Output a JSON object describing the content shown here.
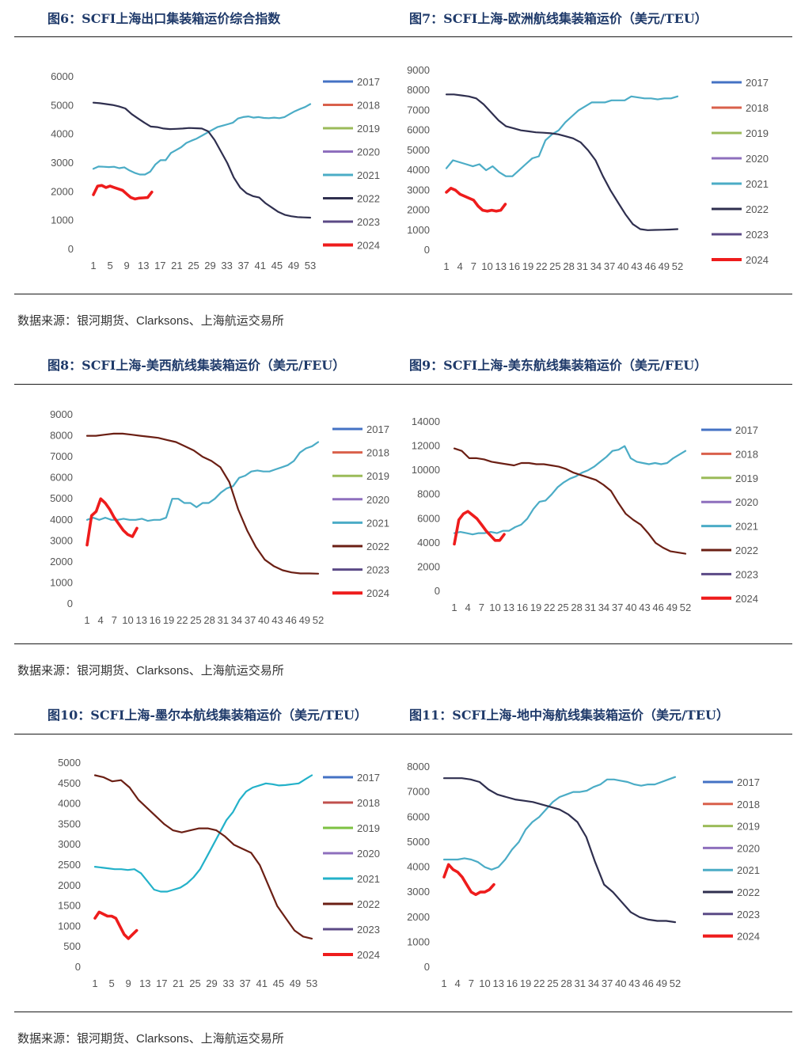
{
  "page": {
    "titles": [
      "图6：SCFI上海出口集装箱运价综合指数",
      "图7：SCFI上海-欧洲航线集装箱运价（美元/TEU）",
      "图8：SCFI上海-美西航线集装箱运价（美元/FEU）",
      "图9：SCFI上海-美东航线集装箱运价（美元/FEU）",
      "图10：SCFI上海-墨尔本航线集装箱运价（美元/TEU）",
      "图11：SCFI上海-地中海航线集装箱运价（美元/TEU）"
    ],
    "sources": [
      "数据来源：银河期货、Clarksons、上海航运交易所",
      "数据来源：银河期货、Clarksons、上海航运交易所",
      "数据来源：银河期货、Clarksons、上海航运交易所"
    ]
  },
  "chart_data": [
    {
      "type": "line",
      "title": "图6：SCFI上海出口集装箱运价综合指数",
      "x_ticks": [
        "1",
        "5",
        "9",
        "13",
        "17",
        "21",
        "25",
        "29",
        "33",
        "37",
        "41",
        "45",
        "49",
        "53"
      ],
      "ylim": [
        0,
        6000
      ],
      "y_ticks": [
        "0",
        "1000",
        "2000",
        "3000",
        "4000",
        "5000",
        "6000"
      ],
      "legend": [
        "2017",
        "2018",
        "2019",
        "2020",
        "2021",
        "2022",
        "2023",
        "2024"
      ],
      "colors": {
        "2017": "#4472c4",
        "2018": "#d9604b",
        "2019": "#9bbb59",
        "2020": "#8e6fbd",
        "2021": "#4bacc6",
        "2022": "#2f2f4f",
        "2023": "#5b4a86",
        "2024": "#ee1c1c"
      },
      "series": [
        {
          "name": "2021",
          "values": [
            2800,
            2880,
            2870,
            2860,
            2870,
            2820,
            2850,
            2740,
            2660,
            2600,
            2600,
            2700,
            2950,
            3100,
            3100,
            3350,
            3450,
            3550,
            3700,
            3780,
            3850,
            3950,
            4050,
            4150,
            4250,
            4300,
            4350,
            4400,
            4550,
            4600,
            4620,
            4580,
            4600,
            4570,
            4560,
            4580,
            4560,
            4600,
            4700,
            4800,
            4880,
            4950,
            5050
          ]
        },
        {
          "name": "2022",
          "values": [
            5100,
            5080,
            5050,
            5020,
            4970,
            4900,
            4700,
            4550,
            4400,
            4270,
            4250,
            4200,
            4180,
            4190,
            4200,
            4220,
            4210,
            4200,
            4100,
            3800,
            3400,
            3000,
            2500,
            2150,
            1950,
            1850,
            1800,
            1600,
            1450,
            1300,
            1200,
            1150,
            1120,
            1110,
            1100
          ]
        },
        {
          "name": "2024",
          "values": [
            1900,
            2200,
            2220,
            2150,
            2200,
            2150,
            2100,
            2050,
            1920,
            1800,
            1750,
            1780,
            1790,
            1800,
            1990
          ]
        }
      ]
    },
    {
      "type": "line",
      "title": "图7：SCFI上海-欧洲航线集装箱运价（美元/TEU）",
      "x_ticks": [
        "1",
        "4",
        "7",
        "10",
        "13",
        "16",
        "19",
        "22",
        "25",
        "28",
        "31",
        "34",
        "37",
        "40",
        "43",
        "46",
        "49",
        "52"
      ],
      "ylim": [
        0,
        9000
      ],
      "y_ticks": [
        "0",
        "1000",
        "2000",
        "3000",
        "4000",
        "5000",
        "6000",
        "7000",
        "8000",
        "9000"
      ],
      "legend": [
        "2017",
        "2018",
        "2019",
        "2020",
        "2021",
        "2022",
        "2023",
        "2024"
      ],
      "colors": {
        "2017": "#4472c4",
        "2018": "#d9604b",
        "2019": "#9bbb59",
        "2020": "#8e6fbd",
        "2021": "#4bacc6",
        "2022": "#2f2f4f",
        "2023": "#5b4a86",
        "2024": "#ee1c1c"
      },
      "series": [
        {
          "name": "2021",
          "values": [
            4100,
            4500,
            4400,
            4300,
            4200,
            4300,
            4000,
            4200,
            3900,
            3700,
            3700,
            4000,
            4300,
            4600,
            4700,
            5500,
            5800,
            6000,
            6400,
            6700,
            7000,
            7200,
            7400,
            7400,
            7400,
            7500,
            7500,
            7500,
            7700,
            7650,
            7600,
            7600,
            7550,
            7600,
            7600,
            7700
          ]
        },
        {
          "name": "2022",
          "values": [
            7800,
            7800,
            7750,
            7700,
            7600,
            7300,
            6900,
            6500,
            6200,
            6100,
            6000,
            5950,
            5900,
            5880,
            5850,
            5800,
            5700,
            5600,
            5400,
            5000,
            4500,
            3700,
            3000,
            2400,
            1800,
            1300,
            1050,
            1000,
            1010,
            1020,
            1030,
            1050
          ]
        },
        {
          "name": "2024",
          "values": [
            2900,
            3100,
            3000,
            2800,
            2700,
            2600,
            2500,
            2200,
            2000,
            1950,
            2000,
            1950,
            2000,
            2300
          ]
        }
      ]
    },
    {
      "type": "line",
      "title": "图8：SCFI上海-美西航线集装箱运价（美元/FEU）",
      "x_ticks": [
        "1",
        "4",
        "7",
        "10",
        "13",
        "16",
        "19",
        "22",
        "25",
        "28",
        "31",
        "34",
        "37",
        "40",
        "43",
        "46",
        "49",
        "52"
      ],
      "ylim": [
        0,
        9000
      ],
      "y_ticks": [
        "0",
        "1000",
        "2000",
        "3000",
        "4000",
        "5000",
        "6000",
        "7000",
        "8000",
        "9000"
      ],
      "legend": [
        "2017",
        "2018",
        "2019",
        "2020",
        "2021",
        "2022",
        "2023",
        "2024"
      ],
      "colors": {
        "2017": "#4472c4",
        "2018": "#d9604b",
        "2019": "#9bbb59",
        "2020": "#8e6fbd",
        "2021": "#4bacc6",
        "2022": "#6b1f14",
        "2023": "#5b4a86",
        "2024": "#ee1c1c"
      },
      "series": [
        {
          "name": "2021",
          "values": [
            4000,
            4100,
            4000,
            4100,
            4000,
            4000,
            4050,
            4000,
            4000,
            4050,
            3950,
            4000,
            4000,
            4100,
            5000,
            5000,
            4800,
            4800,
            4600,
            4800,
            4800,
            5000,
            5300,
            5500,
            5600,
            6000,
            6100,
            6300,
            6350,
            6300,
            6300,
            6400,
            6500,
            6600,
            6800,
            7200,
            7400,
            7500,
            7700
          ]
        },
        {
          "name": "2022",
          "values": [
            8000,
            8000,
            8050,
            8100,
            8100,
            8050,
            8000,
            7950,
            7900,
            7800,
            7700,
            7500,
            7300,
            7000,
            6800,
            6500,
            5800,
            4500,
            3500,
            2700,
            2100,
            1800,
            1600,
            1500,
            1450,
            1450,
            1440
          ]
        },
        {
          "name": "2024",
          "values": [
            2800,
            4200,
            4400,
            5000,
            4800,
            4500,
            4100,
            3800,
            3500,
            3300,
            3200,
            3600
          ]
        }
      ]
    },
    {
      "type": "line",
      "title": "图9：SCFI上海-美东航线集装箱运价（美元/FEU）",
      "x_ticks": [
        "1",
        "4",
        "7",
        "10",
        "13",
        "16",
        "19",
        "22",
        "25",
        "28",
        "31",
        "34",
        "37",
        "40",
        "43",
        "46",
        "49",
        "52"
      ],
      "ylim": [
        0,
        14000
      ],
      "y_ticks": [
        "0",
        "2000",
        "4000",
        "6000",
        "8000",
        "10000",
        "12000",
        "14000"
      ],
      "legend": [
        "2017",
        "2018",
        "2019",
        "2020",
        "2021",
        "2022",
        "2023",
        "2024"
      ],
      "colors": {
        "2017": "#4472c4",
        "2018": "#d9604b",
        "2019": "#9bbb59",
        "2020": "#8e6fbd",
        "2021": "#4bacc6",
        "2022": "#6b1f14",
        "2023": "#5b4a86",
        "2024": "#ee1c1c"
      },
      "series": [
        {
          "name": "2021",
          "values": [
            4800,
            4900,
            4800,
            4700,
            4800,
            4800,
            4900,
            4800,
            5000,
            5000,
            5300,
            5500,
            6000,
            6800,
            7400,
            7500,
            8000,
            8600,
            9000,
            9300,
            9500,
            9800,
            10000,
            10300,
            10700,
            11100,
            11600,
            11700,
            12000,
            11000,
            10700,
            10600,
            10500,
            10600,
            10500,
            10600,
            11000,
            11300,
            11600
          ]
        },
        {
          "name": "2022",
          "values": [
            11800,
            11600,
            11000,
            11000,
            10900,
            10700,
            10600,
            10500,
            10400,
            10600,
            10600,
            10500,
            10500,
            10400,
            10300,
            10100,
            9800,
            9600,
            9400,
            9200,
            8800,
            8300,
            7300,
            6400,
            5900,
            5500,
            4800,
            4000,
            3600,
            3300,
            3200,
            3100
          ]
        },
        {
          "name": "2024",
          "values": [
            3900,
            5900,
            6400,
            6600,
            6300,
            6000,
            5500,
            5000,
            4600,
            4200,
            4200,
            4700
          ]
        }
      ]
    },
    {
      "type": "line",
      "title": "图10：SCFI上海-墨尔本航线集装箱运价（美元/TEU）",
      "x_ticks": [
        "1",
        "5",
        "9",
        "13",
        "17",
        "21",
        "25",
        "29",
        "33",
        "37",
        "41",
        "45",
        "49",
        "53"
      ],
      "ylim": [
        0,
        5000
      ],
      "y_ticks": [
        "0",
        "500",
        "1000",
        "1500",
        "2000",
        "2500",
        "3000",
        "3500",
        "4000",
        "4500",
        "5000"
      ],
      "legend": [
        "2017",
        "2018",
        "2019",
        "2020",
        "2021",
        "2022",
        "2023",
        "2024"
      ],
      "colors": {
        "2017": "#4472c4",
        "2018": "#c0504d",
        "2019": "#7dc242",
        "2020": "#8e6fbd",
        "2021": "#23b1c9",
        "2022": "#6b1f14",
        "2023": "#5b4a86",
        "2024": "#ee1c1c"
      },
      "series": [
        {
          "name": "2021",
          "values": [
            2460,
            2440,
            2420,
            2400,
            2400,
            2380,
            2400,
            2300,
            2100,
            1900,
            1850,
            1850,
            1900,
            1950,
            2050,
            2200,
            2400,
            2700,
            3000,
            3300,
            3600,
            3800,
            4100,
            4300,
            4400,
            4450,
            4500,
            4480,
            4450,
            4460,
            4480,
            4500,
            4600,
            4700
          ]
        },
        {
          "name": "2022",
          "values": [
            4700,
            4650,
            4550,
            4580,
            4400,
            4100,
            3900,
            3700,
            3500,
            3350,
            3300,
            3350,
            3400,
            3400,
            3350,
            3200,
            3000,
            2900,
            2800,
            2500,
            2000,
            1500,
            1200,
            900,
            750,
            700
          ]
        },
        {
          "name": "2024",
          "values": [
            1200,
            1350,
            1300,
            1250,
            1250,
            1200,
            1000,
            800,
            700,
            800,
            900
          ]
        }
      ]
    },
    {
      "type": "line",
      "title": "图11：SCFI上海-地中海航线集装箱运价（美元/TEU）",
      "x_ticks": [
        "1",
        "4",
        "7",
        "10",
        "13",
        "16",
        "19",
        "22",
        "25",
        "28",
        "31",
        "34",
        "37",
        "40",
        "43",
        "46",
        "49",
        "52"
      ],
      "ylim": [
        0,
        8000
      ],
      "y_ticks": [
        "0",
        "1000",
        "2000",
        "3000",
        "4000",
        "5000",
        "6000",
        "7000",
        "8000"
      ],
      "legend": [
        "2017",
        "2018",
        "2019",
        "2020",
        "2021",
        "2022",
        "2023",
        "2024"
      ],
      "colors": {
        "2017": "#4472c4",
        "2018": "#d9604b",
        "2019": "#9bbb59",
        "2020": "#8e6fbd",
        "2021": "#4bacc6",
        "2022": "#2f2f4f",
        "2023": "#5b4a86",
        "2024": "#ee1c1c"
      },
      "series": [
        {
          "name": "2021",
          "values": [
            4300,
            4300,
            4300,
            4350,
            4300,
            4200,
            4000,
            3900,
            4000,
            4300,
            4700,
            5000,
            5500,
            5800,
            6000,
            6300,
            6600,
            6800,
            6900,
            7000,
            7000,
            7050,
            7200,
            7300,
            7500,
            7500,
            7450,
            7400,
            7300,
            7250,
            7300,
            7300,
            7400,
            7500,
            7600
          ]
        },
        {
          "name": "2022",
          "values": [
            7550,
            7550,
            7550,
            7500,
            7400,
            7100,
            6900,
            6800,
            6700,
            6650,
            6600,
            6500,
            6400,
            6300,
            6100,
            5800,
            5200,
            4200,
            3300,
            3000,
            2600,
            2200,
            2000,
            1900,
            1850,
            1850,
            1800
          ]
        },
        {
          "name": "2024",
          "values": [
            3600,
            4100,
            3900,
            3800,
            3600,
            3300,
            3000,
            2900,
            3000,
            3000,
            3100,
            3300
          ]
        }
      ]
    }
  ]
}
